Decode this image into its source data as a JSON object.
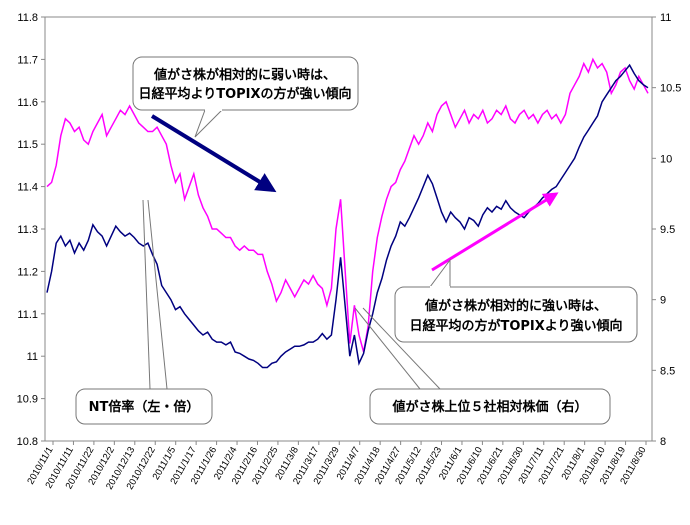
{
  "chart_data": {
    "type": "line",
    "y_left": {
      "ylim": [
        10.8,
        11.8
      ],
      "ticks": [
        "10.8",
        "10.9",
        "11",
        "11.1",
        "11.2",
        "11.3",
        "11.4",
        "11.5",
        "11.6",
        "11.7",
        "11.8"
      ]
    },
    "y_right": {
      "ylim": [
        8,
        11
      ],
      "ticks": [
        "8",
        "8.5",
        "9",
        "9.5",
        "10",
        "10.5",
        "11"
      ]
    },
    "x_ticks": [
      "2010/11/1",
      "2010/11/11",
      "2010/11/22",
      "2010/12/2",
      "2010/12/13",
      "2010/12/22",
      "2011/1/5",
      "2011/1/17",
      "2011/1/26",
      "2011/2/4",
      "2011/2/16",
      "2011/2/25",
      "2011/3/8",
      "2011/3/17",
      "2011/3/29",
      "2011/4/7",
      "2011/4/18",
      "2011/4/27",
      "2011/5/12",
      "2011/5/23",
      "2011/6/1",
      "2011/6/10",
      "2011/6/21",
      "2011/6/30",
      "2011/7/11",
      "2011/7/21",
      "2011/8/1",
      "2011/8/10",
      "2011/8/19",
      "2011/8/30"
    ],
    "series": [
      {
        "name": "NT倍率（左・倍）",
        "axis": "left",
        "color": "#ff00ff",
        "values": [
          11.4,
          11.41,
          11.45,
          11.52,
          11.56,
          11.55,
          11.53,
          11.54,
          11.51,
          11.5,
          11.53,
          11.55,
          11.57,
          11.52,
          11.54,
          11.56,
          11.58,
          11.57,
          11.59,
          11.57,
          11.55,
          11.54,
          11.53,
          11.53,
          11.54,
          11.52,
          11.5,
          11.45,
          11.41,
          11.43,
          11.37,
          11.4,
          11.43,
          11.38,
          11.35,
          11.33,
          11.3,
          11.3,
          11.29,
          11.28,
          11.28,
          11.26,
          11.25,
          11.26,
          11.25,
          11.25,
          11.24,
          11.24,
          11.2,
          11.17,
          11.13,
          11.15,
          11.18,
          11.16,
          11.14,
          11.16,
          11.18,
          11.17,
          11.19,
          11.17,
          11.16,
          11.12,
          11.16,
          11.3,
          11.37,
          11.2,
          11.03,
          11.12,
          11.05,
          11.01,
          11.07,
          11.2,
          11.28,
          11.33,
          11.37,
          11.4,
          11.41,
          11.44,
          11.46,
          11.49,
          11.52,
          11.5,
          11.52,
          11.55,
          11.53,
          11.57,
          11.59,
          11.6,
          11.57,
          11.54,
          11.56,
          11.58,
          11.55,
          11.57,
          11.56,
          11.58,
          11.55,
          11.56,
          11.58,
          11.57,
          11.59,
          11.56,
          11.55,
          11.57,
          11.58,
          11.56,
          11.57,
          11.55,
          11.57,
          11.58,
          11.56,
          11.57,
          11.55,
          11.57,
          11.62,
          11.64,
          11.66,
          11.69,
          11.67,
          11.7,
          11.68,
          11.69,
          11.67,
          11.62,
          11.64,
          11.67,
          11.68,
          11.65,
          11.63,
          11.66,
          11.64,
          11.62
        ]
      },
      {
        "name": "値がさ株上位５社相対株価（右）",
        "axis": "right",
        "color": "#000080",
        "values": [
          9.05,
          9.2,
          9.4,
          9.45,
          9.38,
          9.42,
          9.33,
          9.4,
          9.35,
          9.42,
          9.53,
          9.48,
          9.45,
          9.38,
          9.45,
          9.52,
          9.48,
          9.45,
          9.47,
          9.44,
          9.4,
          9.38,
          9.4,
          9.32,
          9.25,
          9.1,
          9.05,
          9.0,
          8.93,
          8.95,
          8.9,
          8.86,
          8.82,
          8.78,
          8.75,
          8.77,
          8.72,
          8.7,
          8.7,
          8.68,
          8.7,
          8.63,
          8.62,
          8.6,
          8.58,
          8.57,
          8.55,
          8.52,
          8.52,
          8.55,
          8.56,
          8.6,
          8.63,
          8.65,
          8.67,
          8.67,
          8.68,
          8.7,
          8.7,
          8.72,
          8.76,
          8.72,
          8.75,
          9.0,
          9.3,
          8.95,
          8.6,
          8.75,
          8.55,
          8.62,
          8.78,
          8.9,
          9.05,
          9.15,
          9.28,
          9.38,
          9.45,
          9.55,
          9.52,
          9.58,
          9.65,
          9.72,
          9.8,
          9.88,
          9.82,
          9.72,
          9.62,
          9.55,
          9.62,
          9.58,
          9.55,
          9.5,
          9.58,
          9.56,
          9.52,
          9.6,
          9.65,
          9.62,
          9.66,
          9.64,
          9.7,
          9.65,
          9.62,
          9.6,
          9.58,
          9.62,
          9.65,
          9.68,
          9.72,
          9.75,
          9.78,
          9.8,
          9.85,
          9.9,
          9.95,
          10.0,
          10.08,
          10.15,
          10.2,
          10.25,
          10.3,
          10.4,
          10.45,
          10.5,
          10.55,
          10.58,
          10.62,
          10.66,
          10.6,
          10.55,
          10.52,
          10.5
        ]
      }
    ],
    "annotations": [
      {
        "lines": [
          "値がさ株が相対的に弱い時は、",
          "日経平均よりTOPIXの方が強い傾向"
        ]
      },
      {
        "lines": [
          "値がさ株が相対的に強い時は、",
          "日経平均の方がTOPIXより強い傾向"
        ]
      },
      {
        "lines": [
          "NT倍率（左・倍）"
        ]
      },
      {
        "lines": [
          "値がさ株上位５社相対株価（右）"
        ]
      }
    ]
  }
}
